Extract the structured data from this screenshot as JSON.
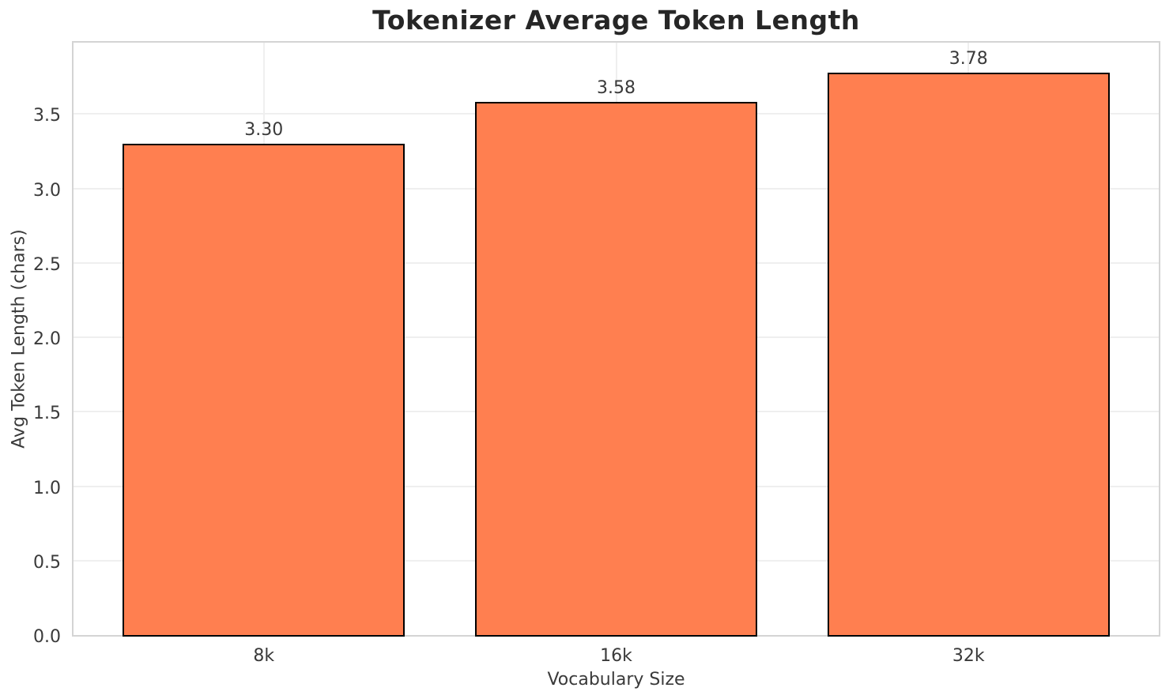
{
  "chart_data": {
    "type": "bar",
    "title": "Tokenizer Average Token Length",
    "xlabel": "Vocabulary Size",
    "ylabel": "Avg Token Length (chars)",
    "categories": [
      "8k",
      "16k",
      "32k"
    ],
    "values": [
      3.3,
      3.58,
      3.78
    ],
    "value_labels": [
      "3.30",
      "3.58",
      "3.78"
    ],
    "yticks": [
      0.0,
      0.5,
      1.0,
      1.5,
      2.0,
      2.5,
      3.0,
      3.5
    ],
    "ytick_labels": [
      "0.0",
      "0.5",
      "1.0",
      "1.5",
      "2.0",
      "2.5",
      "3.0",
      "3.5"
    ],
    "ylim": [
      0,
      3.98
    ],
    "xlim": [
      -0.54,
      2.54
    ],
    "bar_width_units": 0.8,
    "grid": true,
    "legend": "none",
    "bar_color": "#FF7F50",
    "bar_edge_color": "#000000",
    "grid_color": "#efefef",
    "spine_color": "#d4d4d4",
    "text_color": "#3a3a3a",
    "title_color": "#262626"
  }
}
